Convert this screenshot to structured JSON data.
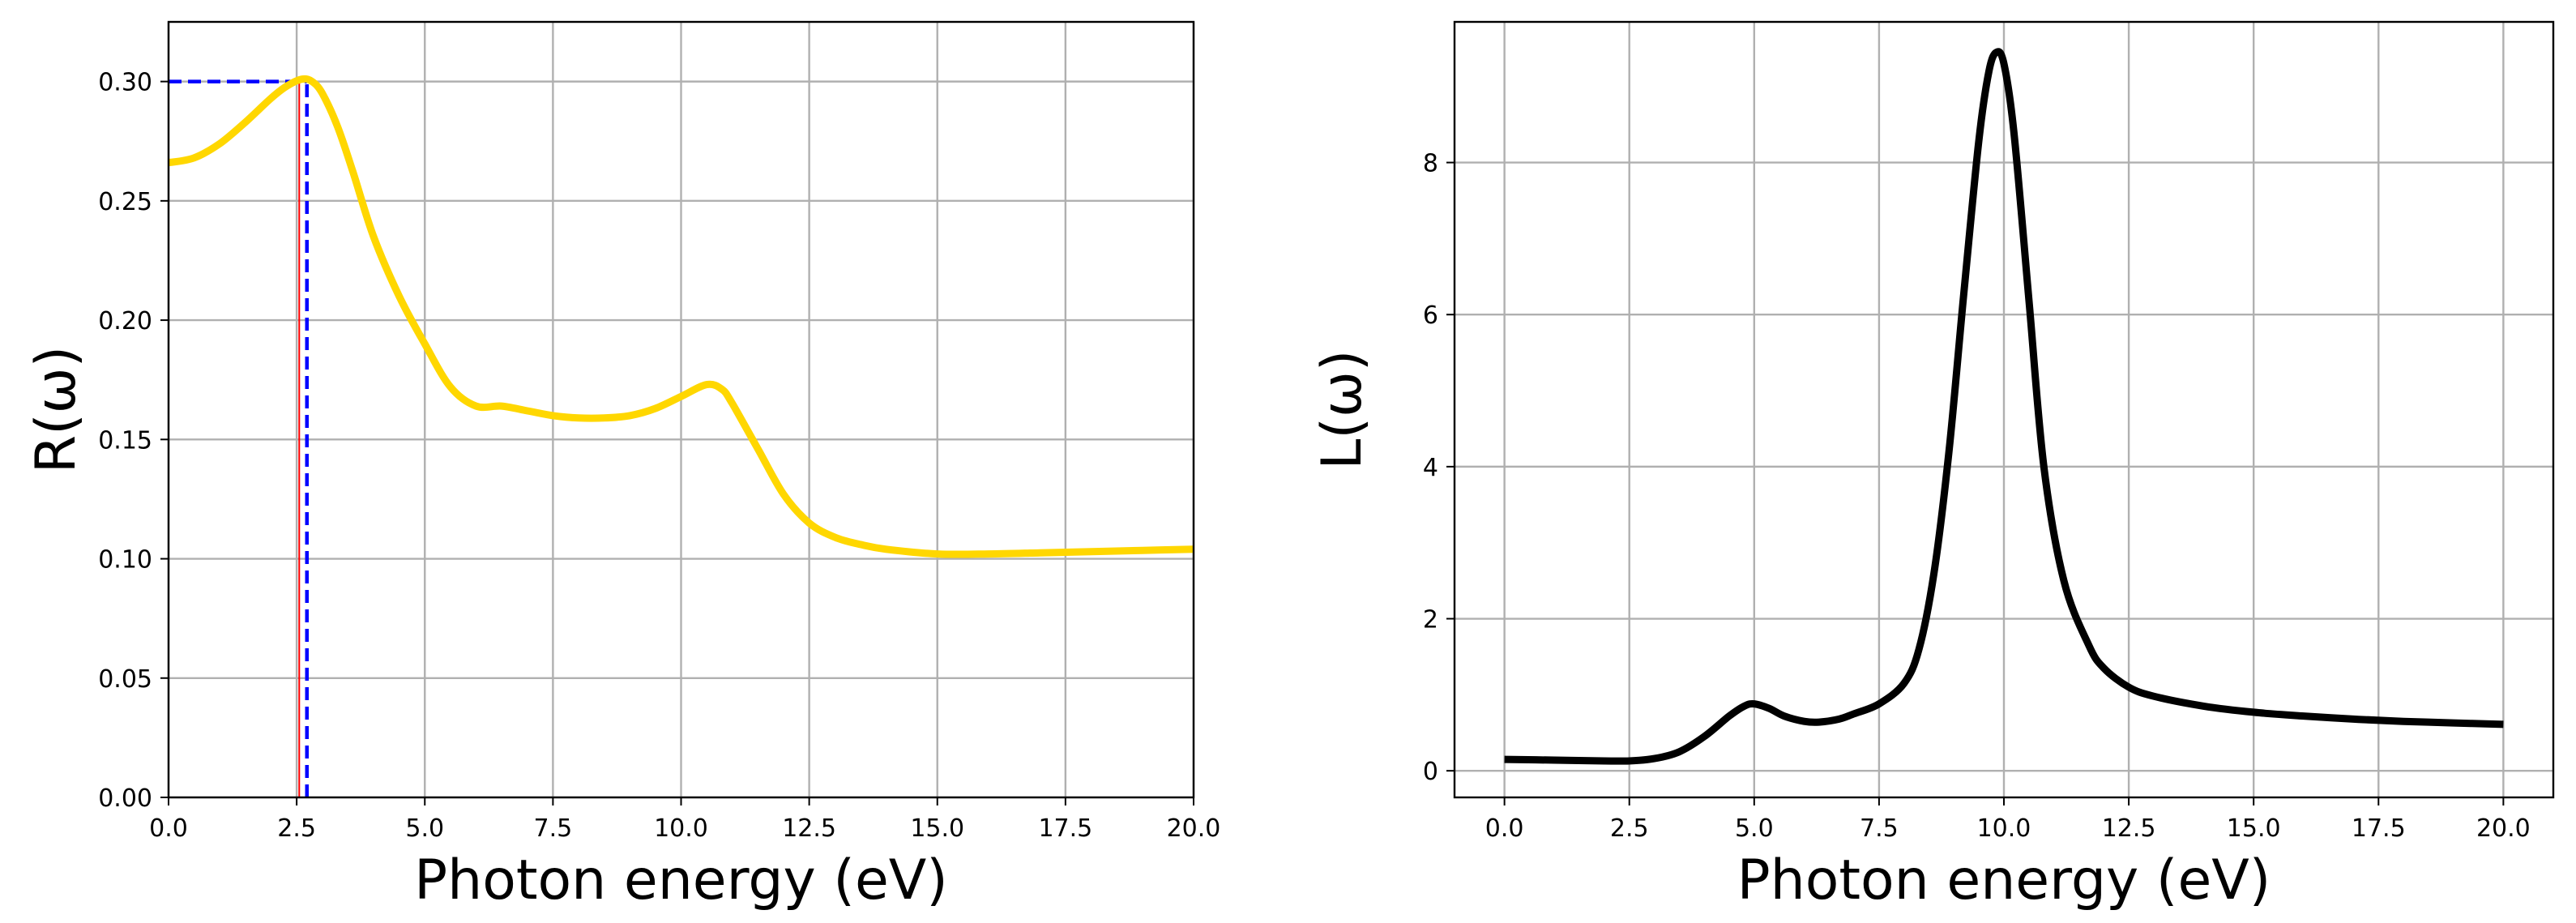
{
  "chart_data": [
    {
      "type": "line",
      "title": "",
      "xlabel": "Photon energy (eV)",
      "ylabel": "R(ω)",
      "xlim": [
        0,
        20
      ],
      "ylim": [
        0,
        0.325
      ],
      "grid": true,
      "xticks": [
        0,
        2.5,
        5,
        7.5,
        10,
        12.5,
        15,
        17.5,
        20
      ],
      "xtick_labels": [
        "0.0",
        "2.5",
        "5.0",
        "7.5",
        "10.0",
        "12.5",
        "15.0",
        "17.5",
        "20.0"
      ],
      "yticks": [
        0,
        0.05,
        0.1,
        0.15,
        0.2,
        0.25,
        0.3
      ],
      "ytick_labels": [
        "0.00",
        "0.05",
        "0.10",
        "0.15",
        "0.20",
        "0.25",
        "0.30"
      ],
      "series": [
        {
          "name": "R",
          "color": "#FFD700",
          "x": [
            0,
            0.5,
            1,
            1.5,
            2,
            2.3,
            2.6,
            2.8,
            3.0,
            3.3,
            3.6,
            4.0,
            4.5,
            5,
            5.5,
            6,
            6.5,
            7,
            7.5,
            8,
            8.5,
            9,
            9.5,
            10,
            10.5,
            10.8,
            11,
            11.5,
            12,
            12.5,
            13,
            13.5,
            14,
            15,
            16,
            17,
            18,
            19,
            20
          ],
          "y": [
            0.266,
            0.268,
            0.274,
            0.283,
            0.293,
            0.298,
            0.301,
            0.3,
            0.295,
            0.281,
            0.262,
            0.235,
            0.21,
            0.19,
            0.172,
            0.164,
            0.164,
            0.162,
            0.16,
            0.159,
            0.159,
            0.16,
            0.163,
            0.168,
            0.173,
            0.171,
            0.165,
            0.146,
            0.127,
            0.115,
            0.109,
            0.106,
            0.104,
            0.102,
            0.102,
            0.1025,
            0.103,
            0.1035,
            0.104
          ]
        }
      ],
      "markers": [
        {
          "name": "peak-hline",
          "color": "#0000FF",
          "style": "dashed",
          "x": [
            0,
            2.7
          ],
          "y": [
            0.3,
            0.3
          ]
        },
        {
          "name": "peak-vline",
          "color": "#0000FF",
          "style": "dashed",
          "x": [
            2.7,
            2.7
          ],
          "y": [
            0,
            0.3
          ]
        },
        {
          "name": "peak-redline",
          "color": "#FF0000",
          "style": "solid",
          "x": [
            2.55,
            2.55
          ],
          "y": [
            0,
            0.3
          ]
        }
      ]
    },
    {
      "type": "line",
      "title": "",
      "xlabel": "Photon energy (eV)",
      "ylabel": "L(ω)",
      "xlim": [
        -1,
        21
      ],
      "ylim": [
        -0.35,
        9.85
      ],
      "grid": true,
      "xticks": [
        0,
        2.5,
        5,
        7.5,
        10,
        12.5,
        15,
        17.5,
        20
      ],
      "xtick_labels": [
        "0.0",
        "2.5",
        "5.0",
        "7.5",
        "10.0",
        "12.5",
        "15.0",
        "17.5",
        "20.0"
      ],
      "yticks": [
        0,
        2,
        4,
        6,
        8
      ],
      "ytick_labels": [
        "0",
        "2",
        "4",
        "6",
        "8"
      ],
      "series": [
        {
          "name": "L",
          "color": "#000000",
          "x": [
            0,
            1,
            2,
            2.5,
            3,
            3.5,
            4,
            4.5,
            4.8,
            5.0,
            5.3,
            5.6,
            6,
            6.3,
            6.7,
            7,
            7.5,
            8,
            8.3,
            8.6,
            8.9,
            9.2,
            9.5,
            9.7,
            9.85,
            10.0,
            10.2,
            10.5,
            10.8,
            11.2,
            11.7,
            12,
            12.5,
            13,
            14,
            15,
            16,
            17,
            18,
            19,
            20
          ],
          "y": [
            0.15,
            0.14,
            0.13,
            0.13,
            0.16,
            0.25,
            0.45,
            0.72,
            0.85,
            0.88,
            0.82,
            0.72,
            0.65,
            0.64,
            0.68,
            0.75,
            0.88,
            1.15,
            1.6,
            2.6,
            4.2,
            6.3,
            8.3,
            9.2,
            9.45,
            9.3,
            8.4,
            6.2,
            4.0,
            2.5,
            1.65,
            1.35,
            1.1,
            0.98,
            0.85,
            0.77,
            0.72,
            0.68,
            0.65,
            0.63,
            0.61
          ]
        }
      ]
    }
  ]
}
